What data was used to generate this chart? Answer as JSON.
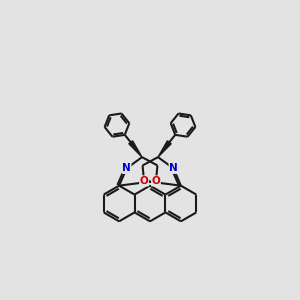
{
  "background_color": "#e3e3e3",
  "bond_color": "#1a1a1a",
  "nitrogen_color": "#0000cc",
  "oxygen_color": "#cc0000",
  "line_width": 1.5,
  "figsize": [
    3.0,
    3.0
  ],
  "dpi": 100,
  "xlim": [
    0,
    10
  ],
  "ylim": [
    0,
    10
  ]
}
